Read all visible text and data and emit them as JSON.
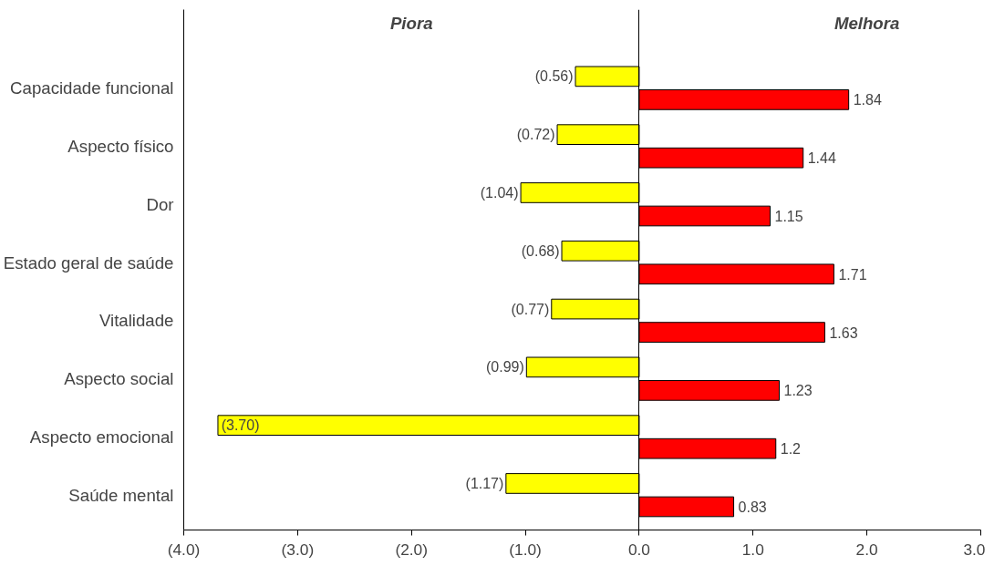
{
  "chart_data": {
    "type": "bar",
    "orientation": "horizontal",
    "categories": [
      "Capacidade funcional",
      "Aspecto físico",
      "Dor",
      "Estado geral de saúde",
      "Vitalidade",
      "Aspecto social",
      "Aspecto emocional",
      "Saúde mental"
    ],
    "series": [
      {
        "color": "#ffff00",
        "values": [
          -0.56,
          -0.72,
          -1.04,
          -0.68,
          -0.77,
          -0.99,
          -3.7,
          -1.17
        ],
        "value_labels": [
          "(0.56)",
          "(0.72)",
          "(1.04)",
          "(0.68)",
          "(0.77)",
          "(0.99)",
          "(3.70)",
          "(1.17)"
        ]
      },
      {
        "color": "#ff0000",
        "values": [
          1.84,
          1.44,
          1.15,
          1.71,
          1.63,
          1.23,
          1.2,
          0.83
        ],
        "value_labels": [
          "1.84",
          "1.44",
          "1.15",
          "1.71",
          "1.63",
          "1.23",
          "1.2",
          "0.83"
        ]
      }
    ],
    "xlim": [
      -4,
      3
    ],
    "xticks": [
      {
        "value": -4,
        "label": "(4.0)"
      },
      {
        "value": -3,
        "label": "(3.0)"
      },
      {
        "value": -2,
        "label": "(2.0)"
      },
      {
        "value": -1,
        "label": "(1.0)"
      },
      {
        "value": 0,
        "label": "0.0"
      },
      {
        "value": 1,
        "label": "1.0"
      },
      {
        "value": 2,
        "label": "2.0"
      },
      {
        "value": 3,
        "label": "3.0"
      }
    ],
    "annotations": [
      "Piora",
      "Melhora"
    ]
  }
}
